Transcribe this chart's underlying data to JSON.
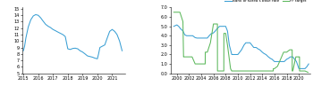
{
  "left_chart": {
    "ylabel_values": [
      5,
      6,
      7,
      8,
      9,
      10,
      11,
      12,
      13,
      14,
      15
    ],
    "ylim": [
      5,
      15.2
    ],
    "xlim": [
      2014.9,
      2021.85
    ],
    "xticks": [
      2015,
      2016,
      2017,
      2018,
      2019,
      2020,
      2021
    ],
    "xtick_labels": [
      "2015",
      "2016",
      "2017",
      "2018",
      "2019",
      "2020",
      "2021"
    ],
    "line_color": "#3a9fd4",
    "data_x": [
      2015.0,
      2015.08,
      2015.17,
      2015.33,
      2015.5,
      2015.67,
      2015.83,
      2016.0,
      2016.17,
      2016.33,
      2016.5,
      2016.67,
      2016.83,
      2017.0,
      2017.17,
      2017.33,
      2017.5,
      2017.67,
      2017.83,
      2018.0,
      2018.08,
      2018.17,
      2018.33,
      2018.5,
      2018.67,
      2018.83,
      2019.0,
      2019.17,
      2019.33,
      2019.5,
      2019.67,
      2019.83,
      2020.0,
      2020.08,
      2020.17,
      2020.33,
      2020.5,
      2020.67,
      2020.83,
      2021.0,
      2021.17,
      2021.33,
      2021.5,
      2021.67
    ],
    "data_y": [
      8.5,
      9.2,
      10.5,
      12.2,
      13.3,
      13.9,
      14.1,
      14.0,
      13.6,
      13.1,
      12.6,
      12.3,
      12.1,
      11.8,
      11.6,
      11.4,
      11.2,
      11.0,
      10.7,
      8.8,
      8.75,
      8.7,
      8.85,
      8.9,
      8.8,
      8.5,
      8.3,
      8.0,
      7.7,
      7.6,
      7.5,
      7.35,
      7.25,
      8.0,
      9.0,
      9.2,
      9.4,
      10.5,
      11.5,
      11.8,
      11.5,
      11.0,
      10.0,
      8.5
    ]
  },
  "right_chart": {
    "ylim": [
      0,
      7.0
    ],
    "yticks": [
      0.0,
      1.0,
      2.0,
      3.0,
      4.0,
      5.0,
      6.0,
      7.0
    ],
    "ytick_labels": [
      "0.0",
      "1.0",
      "2.0",
      "3.0",
      "4.0",
      "5.0",
      "6.0",
      "7.0"
    ],
    "xlim": [
      1999.0,
      2021.8
    ],
    "xticks": [
      2000,
      2002,
      2004,
      2006,
      2008,
      2010,
      2012,
      2014,
      2016,
      2018,
      2020
    ],
    "xtick_labels": [
      "2000",
      "2002",
      "2004",
      "2006",
      "2008",
      "2010",
      "2012",
      "2014",
      "2016",
      "2018",
      "2020"
    ],
    "bok_color": "#3a9fd4",
    "ff_color": "#5cb85c",
    "legend_labels": [
      "Bank of Korea's base rate",
      "FF target"
    ],
    "bok_data_x": [
      1999.5,
      2000.0,
      2000.3,
      2000.6,
      2001.0,
      2001.3,
      2001.6,
      2002.0,
      2002.3,
      2002.6,
      2003.0,
      2003.3,
      2003.6,
      2004.0,
      2004.3,
      2004.6,
      2005.0,
      2005.3,
      2005.6,
      2006.0,
      2006.3,
      2006.6,
      2007.0,
      2007.3,
      2007.6,
      2008.0,
      2008.3,
      2008.6,
      2009.0,
      2009.3,
      2009.6,
      2010.0,
      2010.3,
      2010.6,
      2011.0,
      2011.3,
      2011.6,
      2012.0,
      2012.3,
      2012.6,
      2013.0,
      2013.3,
      2013.6,
      2014.0,
      2014.3,
      2014.6,
      2015.0,
      2015.3,
      2015.6,
      2016.0,
      2016.3,
      2016.6,
      2017.0,
      2017.3,
      2017.6,
      2018.0,
      2018.3,
      2018.6,
      2019.0,
      2019.3,
      2019.6,
      2020.0,
      2020.3,
      2020.6,
      2021.0,
      2021.3,
      2021.6
    ],
    "bok_data_y": [
      5.0,
      5.15,
      5.0,
      4.75,
      4.5,
      4.1,
      4.0,
      4.0,
      4.0,
      4.0,
      3.8,
      3.75,
      3.75,
      3.75,
      3.75,
      3.75,
      3.75,
      4.0,
      4.2,
      4.3,
      4.5,
      4.75,
      5.0,
      5.0,
      5.0,
      5.0,
      4.5,
      3.0,
      2.0,
      2.0,
      2.0,
      2.0,
      2.25,
      2.5,
      3.0,
      3.25,
      3.25,
      3.25,
      3.0,
      2.75,
      2.75,
      2.6,
      2.5,
      2.25,
      2.1,
      2.0,
      1.75,
      1.6,
      1.5,
      1.25,
      1.25,
      1.25,
      1.25,
      1.25,
      1.25,
      1.5,
      1.6,
      1.75,
      1.75,
      1.5,
      1.25,
      0.5,
      0.5,
      0.5,
      0.5,
      0.7,
      1.0
    ],
    "ff_data_x": [
      1999.5,
      2000.0,
      2000.5,
      2001.0,
      2001.1,
      2001.15,
      2001.5,
      2002.0,
      2002.5,
      2003.0,
      2003.5,
      2004.0,
      2004.5,
      2004.65,
      2004.66,
      2005.0,
      2005.5,
      2006.0,
      2006.5,
      2006.65,
      2006.66,
      2007.0,
      2007.5,
      2007.7,
      2007.71,
      2008.0,
      2008.3,
      2008.8,
      2008.99,
      2009.0,
      2009.5,
      2010.0,
      2010.5,
      2011.0,
      2011.5,
      2012.0,
      2012.5,
      2013.0,
      2013.5,
      2014.0,
      2014.5,
      2015.0,
      2015.8,
      2015.81,
      2016.0,
      2016.5,
      2017.0,
      2017.5,
      2018.0,
      2018.5,
      2018.9,
      2018.91,
      2019.0,
      2019.5,
      2020.0,
      2020.1,
      2020.11,
      2020.5,
      2021.0,
      2021.5
    ],
    "ff_data_y": [
      6.5,
      6.5,
      6.5,
      5.5,
      1.75,
      1.75,
      1.75,
      1.75,
      1.75,
      1.0,
      1.0,
      1.0,
      1.0,
      1.0,
      2.25,
      2.25,
      3.25,
      5.25,
      5.25,
      5.25,
      0.25,
      0.25,
      0.25,
      0.25,
      4.25,
      4.25,
      3.0,
      0.5,
      0.25,
      0.25,
      0.25,
      0.25,
      0.25,
      0.25,
      0.25,
      0.25,
      0.25,
      0.25,
      0.25,
      0.25,
      0.25,
      0.25,
      0.25,
      0.5,
      0.5,
      0.75,
      1.5,
      2.25,
      2.25,
      2.5,
      2.5,
      0.25,
      0.25,
      1.75,
      1.75,
      1.75,
      0.25,
      0.25,
      0.25,
      0.1
    ]
  },
  "fig_bg": "#ffffff",
  "line_width": 0.75
}
